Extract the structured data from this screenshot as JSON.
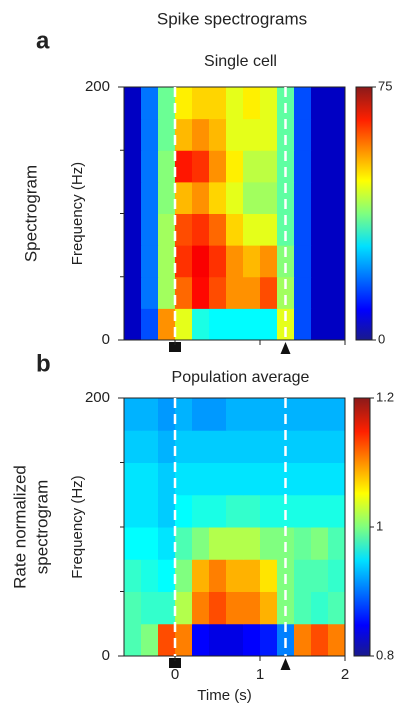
{
  "figure_title": "Spike spectrograms",
  "chart_data": [
    {
      "type": "heatmap",
      "panel_label": "a",
      "title": "Single cell",
      "row_label": [
        "Spectrogram"
      ],
      "ylabel": "Frequency (Hz)",
      "xlim": [
        -0.6,
        2
      ],
      "ylim": [
        0,
        200
      ],
      "xticks": [
        0,
        1,
        2
      ],
      "show_xtick_labels": false,
      "yticks": [
        0,
        200
      ],
      "yminorticks": [
        50,
        100,
        150
      ],
      "x_edges": [
        -0.6,
        -0.4,
        -0.2,
        0,
        0.2,
        0.4,
        0.6,
        0.8,
        1,
        1.2,
        1.4,
        1.6,
        1.8,
        2
      ],
      "y_edges": [
        0,
        25,
        50,
        75,
        100,
        125,
        150,
        175,
        200
      ],
      "z": [
        [
          5,
          15,
          55,
          45,
          30,
          28,
          28,
          28,
          28,
          45,
          15,
          5,
          5
        ],
        [
          5,
          18,
          40,
          58,
          65,
          60,
          55,
          55,
          60,
          40,
          15,
          5,
          5
        ],
        [
          5,
          18,
          40,
          62,
          66,
          62,
          55,
          52,
          55,
          38,
          15,
          5,
          5
        ],
        [
          5,
          18,
          40,
          60,
          62,
          58,
          50,
          45,
          45,
          35,
          15,
          5,
          5
        ],
        [
          5,
          18,
          38,
          52,
          55,
          50,
          45,
          40,
          40,
          35,
          15,
          5,
          5
        ],
        [
          5,
          18,
          38,
          64,
          62,
          55,
          48,
          42,
          42,
          35,
          15,
          5,
          5
        ],
        [
          5,
          18,
          36,
          52,
          55,
          52,
          45,
          45,
          45,
          35,
          15,
          5,
          5
        ],
        [
          5,
          18,
          36,
          48,
          50,
          50,
          45,
          48,
          45,
          35,
          15,
          5,
          5
        ]
      ],
      "zlim": [
        0,
        75
      ],
      "zticks": [
        0,
        75
      ],
      "colormap": "jet",
      "markers": [
        {
          "x": 0,
          "shape": "square"
        },
        {
          "x": 1.3,
          "shape": "triangle"
        }
      ]
    },
    {
      "type": "heatmap",
      "panel_label": "b",
      "title": "Population average",
      "row_label": [
        "Rate  normalized",
        "spectrogram"
      ],
      "ylabel": "Frequency (Hz)",
      "xlabel": "Time (s)",
      "xlim": [
        -0.6,
        2
      ],
      "ylim": [
        0,
        200
      ],
      "xticks": [
        0,
        1,
        2
      ],
      "show_xtick_labels": true,
      "yticks": [
        0,
        200
      ],
      "yminorticks": [
        50,
        100,
        150
      ],
      "x_edges": [
        -0.6,
        -0.4,
        -0.2,
        0,
        0.2,
        0.4,
        0.6,
        0.8,
        1,
        1.2,
        1.4,
        1.6,
        1.8,
        2
      ],
      "y_edges": [
        0,
        25,
        50,
        75,
        100,
        125,
        150,
        175,
        200
      ],
      "z": [
        [
          0.98,
          1.0,
          1.12,
          1.1,
          0.85,
          0.84,
          0.84,
          0.85,
          0.86,
          0.9,
          1.1,
          1.12,
          1.1
        ],
        [
          0.98,
          0.97,
          0.97,
          1.02,
          1.1,
          1.12,
          1.1,
          1.1,
          1.08,
          1.0,
          0.98,
          0.97,
          0.98
        ],
        [
          0.97,
          0.96,
          0.95,
          1.0,
          1.08,
          1.1,
          1.08,
          1.08,
          1.06,
          1.0,
          0.98,
          0.98,
          0.97
        ],
        [
          0.95,
          0.95,
          0.94,
          0.98,
          1.0,
          1.02,
          1.02,
          1.02,
          1.0,
          1.0,
          0.99,
          1.0,
          0.98
        ],
        [
          0.94,
          0.94,
          0.93,
          0.95,
          0.96,
          0.96,
          0.97,
          0.97,
          0.96,
          0.96,
          0.96,
          0.96,
          0.96
        ],
        [
          0.94,
          0.94,
          0.93,
          0.94,
          0.94,
          0.94,
          0.94,
          0.94,
          0.94,
          0.94,
          0.94,
          0.94,
          0.94
        ],
        [
          0.93,
          0.93,
          0.92,
          0.93,
          0.93,
          0.93,
          0.93,
          0.93,
          0.93,
          0.93,
          0.93,
          0.93,
          0.93
        ],
        [
          0.92,
          0.92,
          0.91,
          0.92,
          0.91,
          0.91,
          0.92,
          0.92,
          0.92,
          0.92,
          0.92,
          0.92,
          0.92
        ]
      ],
      "zlim": [
        0.8,
        1.2
      ],
      "zticks": [
        0.8,
        1,
        1.2
      ],
      "colormap": "jet",
      "markers": [
        {
          "x": 0,
          "shape": "square"
        },
        {
          "x": 1.3,
          "shape": "triangle"
        }
      ]
    }
  ]
}
